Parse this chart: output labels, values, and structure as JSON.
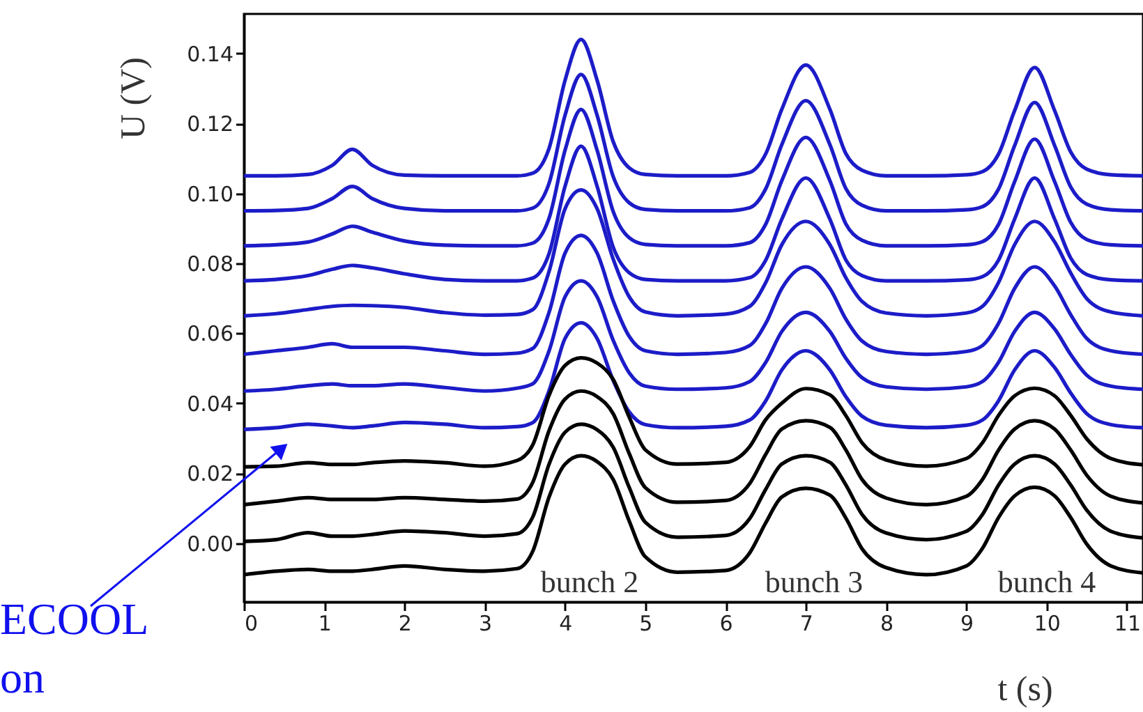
{
  "chart_data": {
    "type": "line",
    "xlabel": "t (s)",
    "ylabel": "U (V)",
    "x": [
      0,
      0.4,
      0.8,
      1.1,
      1.35,
      1.6,
      2.0,
      2.5,
      3.0,
      3.4,
      3.6,
      3.8,
      4.0,
      4.2,
      4.4,
      4.6,
      4.8,
      5.0,
      5.4,
      6.0,
      6.3,
      6.5,
      6.7,
      7.0,
      7.3,
      7.5,
      7.7,
      8.0,
      8.5,
      9.0,
      9.2,
      9.4,
      9.6,
      9.85,
      10.1,
      10.3,
      10.5,
      10.8,
      11.2
    ],
    "series": [
      {
        "color": "#1c1cc8",
        "values": [
          0.105,
          0.105,
          0.1054,
          0.108,
          0.1126,
          0.108,
          0.1052,
          0.105,
          0.105,
          0.105,
          0.1058,
          0.1128,
          0.1323,
          0.144,
          0.1323,
          0.1148,
          0.1073,
          0.1054,
          0.105,
          0.105,
          0.106,
          0.1113,
          0.124,
          0.1367,
          0.124,
          0.1113,
          0.1066,
          0.105,
          0.105,
          0.1053,
          0.1062,
          0.1112,
          0.1236,
          0.136,
          0.1236,
          0.1118,
          0.1069,
          0.1053,
          0.105
        ]
      },
      {
        "color": "#1c1cc8",
        "values": [
          0.095,
          0.0951,
          0.0957,
          0.0985,
          0.102,
          0.0985,
          0.0957,
          0.095,
          0.095,
          0.095,
          0.0958,
          0.1028,
          0.1223,
          0.134,
          0.1223,
          0.1048,
          0.0973,
          0.0954,
          0.095,
          0.095,
          0.0959,
          0.1013,
          0.1139,
          0.1265,
          0.1139,
          0.1013,
          0.0966,
          0.095,
          0.095,
          0.0953,
          0.0962,
          0.1012,
          0.1136,
          0.126,
          0.1136,
          0.1018,
          0.0969,
          0.0953,
          0.095
        ]
      },
      {
        "color": "#1c1cc8",
        "values": [
          0.085,
          0.0853,
          0.0861,
          0.0884,
          0.0906,
          0.0889,
          0.0864,
          0.0852,
          0.085,
          0.085,
          0.0858,
          0.0928,
          0.1123,
          0.124,
          0.1123,
          0.0948,
          0.0873,
          0.0854,
          0.085,
          0.085,
          0.0859,
          0.0912,
          0.1036,
          0.116,
          0.1036,
          0.0912,
          0.0866,
          0.085,
          0.085,
          0.0853,
          0.0862,
          0.0911,
          0.1033,
          0.1155,
          0.1033,
          0.0917,
          0.0868,
          0.0853,
          0.085
        ]
      },
      {
        "color": "#1c1cc8",
        "values": [
          0.075,
          0.0754,
          0.0765,
          0.0783,
          0.0794,
          0.0787,
          0.077,
          0.0754,
          0.075,
          0.075,
          0.0758,
          0.0827,
          0.102,
          0.1135,
          0.102,
          0.0846,
          0.0773,
          0.0754,
          0.075,
          0.075,
          0.0759,
          0.0809,
          0.0926,
          0.1044,
          0.0926,
          0.0809,
          0.0765,
          0.075,
          0.075,
          0.0753,
          0.0762,
          0.0809,
          0.0926,
          0.1044,
          0.0926,
          0.0815,
          0.0768,
          0.0753,
          0.075
        ]
      },
      {
        "color": "#1c1cc8",
        "values": [
          0.065,
          0.0656,
          0.0668,
          0.0677,
          0.068,
          0.0679,
          0.0674,
          0.0659,
          0.0652,
          0.0654,
          0.0668,
          0.0776,
          0.0956,
          0.101,
          0.0956,
          0.0812,
          0.0704,
          0.0661,
          0.065,
          0.0655,
          0.0677,
          0.0745,
          0.0853,
          0.092,
          0.0853,
          0.0758,
          0.0691,
          0.0658,
          0.065,
          0.0658,
          0.0677,
          0.0745,
          0.0853,
          0.092,
          0.0861,
          0.0772,
          0.0699,
          0.0661,
          0.065
        ]
      },
      {
        "color": "#1c1cc8",
        "values": [
          0.054,
          0.055,
          0.056,
          0.057,
          0.056,
          0.056,
          0.056,
          0.055,
          0.054,
          0.0543,
          0.0557,
          0.0659,
          0.0829,
          0.088,
          0.0829,
          0.0693,
          0.0591,
          0.055,
          0.054,
          0.0545,
          0.0565,
          0.0628,
          0.0728,
          0.079,
          0.0728,
          0.064,
          0.0578,
          0.0548,
          0.054,
          0.0548,
          0.0565,
          0.0628,
          0.0728,
          0.079,
          0.0735,
          0.0653,
          0.0585,
          0.055,
          0.054
        ]
      },
      {
        "color": "#1c1cc8",
        "values": [
          0.0435,
          0.044,
          0.045,
          0.0455,
          0.045,
          0.045,
          0.0455,
          0.0445,
          0.0435,
          0.0443,
          0.0456,
          0.0549,
          0.0704,
          0.075,
          0.0704,
          0.058,
          0.0487,
          0.0449,
          0.044,
          0.0444,
          0.0462,
          0.0517,
          0.0605,
          0.066,
          0.0605,
          0.0528,
          0.0473,
          0.0447,
          0.044,
          0.0447,
          0.0462,
          0.0517,
          0.0605,
          0.066,
          0.0612,
          0.0539,
          0.048,
          0.0449,
          0.044
        ]
      },
      {
        "color": "#1c1cc8",
        "values": [
          0.0325,
          0.033,
          0.034,
          0.0335,
          0.033,
          0.0335,
          0.0345,
          0.034,
          0.033,
          0.0333,
          0.0345,
          0.0435,
          0.0585,
          0.063,
          0.0585,
          0.0465,
          0.0375,
          0.0339,
          0.033,
          0.0334,
          0.0352,
          0.0407,
          0.0495,
          0.055,
          0.0495,
          0.0418,
          0.0363,
          0.0337,
          0.033,
          0.0337,
          0.0352,
          0.0407,
          0.0495,
          0.055,
          0.0502,
          0.0429,
          0.037,
          0.0339,
          0.033
        ]
      },
      {
        "color": "#000000",
        "values": [
          0.0218,
          0.022,
          0.023,
          0.0225,
          0.0225,
          0.023,
          0.0235,
          0.023,
          0.022,
          0.0236,
          0.0282,
          0.0422,
          0.0508,
          0.053,
          0.0515,
          0.0468,
          0.036,
          0.0267,
          0.0226,
          0.0231,
          0.0276,
          0.0353,
          0.04,
          0.0442,
          0.0424,
          0.0364,
          0.0287,
          0.0238,
          0.022,
          0.0242,
          0.0287,
          0.0365,
          0.0421,
          0.0443,
          0.0421,
          0.0365,
          0.0298,
          0.0242,
          0.0224
        ]
      },
      {
        "color": "#000000",
        "values": [
          0.011,
          0.012,
          0.013,
          0.0125,
          0.0125,
          0.0125,
          0.013,
          0.0125,
          0.012,
          0.0126,
          0.0175,
          0.0321,
          0.0412,
          0.0435,
          0.0419,
          0.037,
          0.0256,
          0.0159,
          0.0117,
          0.0122,
          0.017,
          0.0254,
          0.0326,
          0.035,
          0.0331,
          0.0266,
          0.0182,
          0.0129,
          0.011,
          0.0134,
          0.0182,
          0.0266,
          0.0326,
          0.035,
          0.0326,
          0.0266,
          0.0194,
          0.0134,
          0.0115
        ]
      },
      {
        "color": "#000000",
        "values": [
          0.0005,
          0.001,
          0.003,
          0.002,
          0.002,
          0.0025,
          0.0035,
          0.003,
          0.002,
          0.0027,
          0.0076,
          0.0225,
          0.0317,
          0.034,
          0.0324,
          0.0274,
          0.0159,
          0.006,
          0.0017,
          0.0022,
          0.007,
          0.0154,
          0.0226,
          0.025,
          0.0231,
          0.0166,
          0.0082,
          0.0029,
          0.001,
          0.0034,
          0.0082,
          0.0166,
          0.0226,
          0.025,
          0.0226,
          0.0166,
          0.0094,
          0.0034,
          0.0015
        ]
      },
      {
        "color": "#000000",
        "values": [
          -0.009,
          -0.008,
          -0.0075,
          -0.008,
          -0.008,
          -0.0075,
          -0.0065,
          -0.0075,
          -0.008,
          -0.0073,
          -0.0022,
          0.0131,
          0.0226,
          0.025,
          0.0233,
          0.0182,
          0.0063,
          -0.0039,
          -0.0083,
          -0.0078,
          -0.0028,
          0.0058,
          0.0132,
          0.0157,
          0.0137,
          0.0071,
          -0.0016,
          -0.007,
          -0.009,
          -0.0065,
          -0.0015,
          0.0073,
          0.0135,
          0.016,
          0.0135,
          0.0073,
          -0.0003,
          -0.0065,
          -0.0085
        ]
      }
    ],
    "xlim": [
      0,
      11.2
    ],
    "xticks": [
      0,
      1,
      2,
      3,
      4,
      5,
      6,
      7,
      8,
      9,
      10,
      11
    ],
    "ylim": [
      -0.0168,
      0.1513
    ],
    "yticks": [
      {
        "value": 0,
        "label": "0.00"
      },
      {
        "value": 0.02,
        "label": "0.02"
      },
      {
        "value": 0.04,
        "label": "0.04"
      },
      {
        "value": 0.06,
        "label": "0.06"
      },
      {
        "value": 0.08,
        "label": "0.08"
      },
      {
        "value": 0.1,
        "label": "0.10"
      },
      {
        "value": 0.12,
        "label": "0.12"
      },
      {
        "value": 0.14,
        "label": "0.14"
      }
    ],
    "annotations": [
      "bunch 2",
      "bunch 3",
      "bunch 4",
      "ECOOL on"
    ]
  }
}
